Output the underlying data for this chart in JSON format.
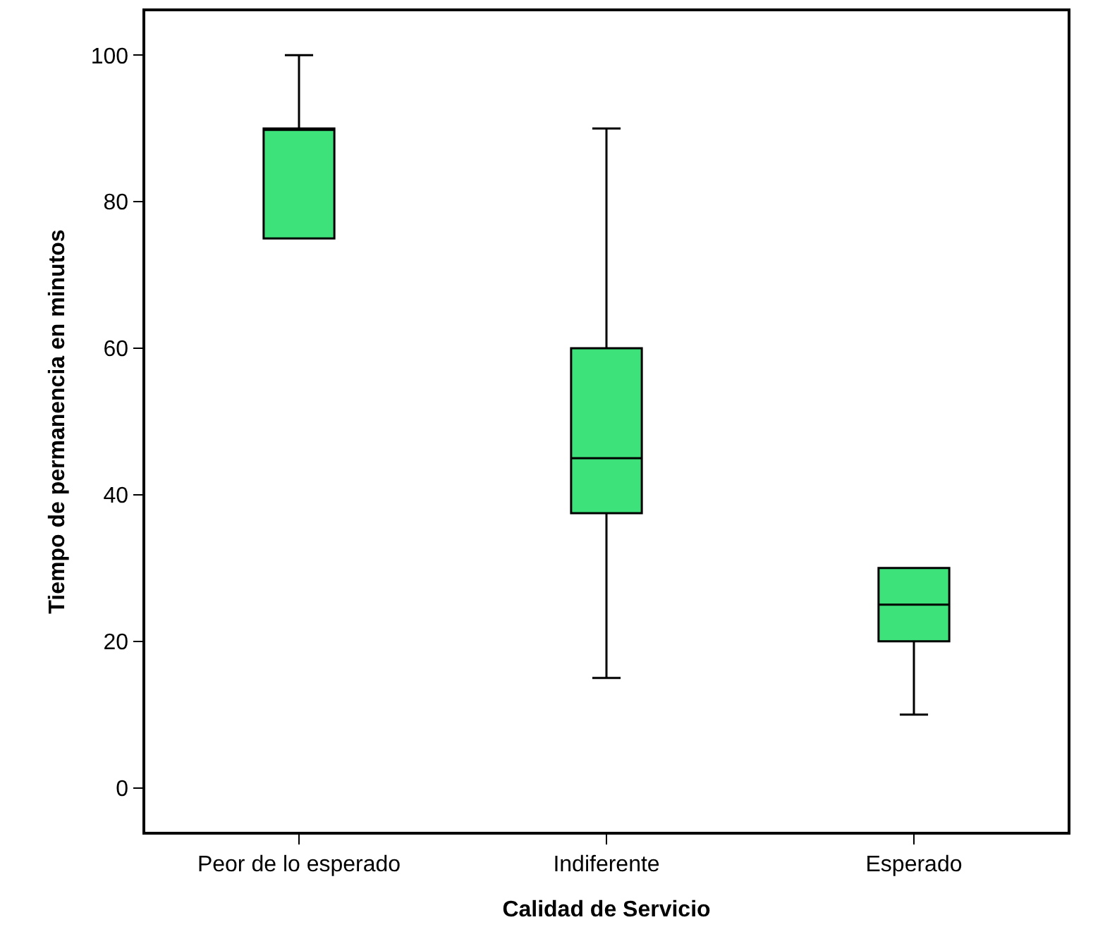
{
  "chart_data": {
    "type": "box",
    "xlabel": "Calidad de Servicio",
    "ylabel": "Tiempo de permanencia en minutos",
    "categories": [
      "Peor de lo esperado",
      "Indiferente",
      "Esperado"
    ],
    "color": "#3de27a",
    "boxes": [
      {
        "low": 75,
        "q1": 75,
        "median": 90,
        "q3": 90,
        "high": 100
      },
      {
        "low": 15,
        "q1": 37.5,
        "median": 45,
        "q3": 60,
        "high": 90
      },
      {
        "low": 10,
        "q1": 20,
        "median": 25,
        "q3": 30,
        "high": 30
      }
    ],
    "ylim": [
      -6,
      106
    ],
    "yticks": [
      0,
      20,
      40,
      60,
      80,
      100
    ],
    "grid": false,
    "legend": false
  }
}
